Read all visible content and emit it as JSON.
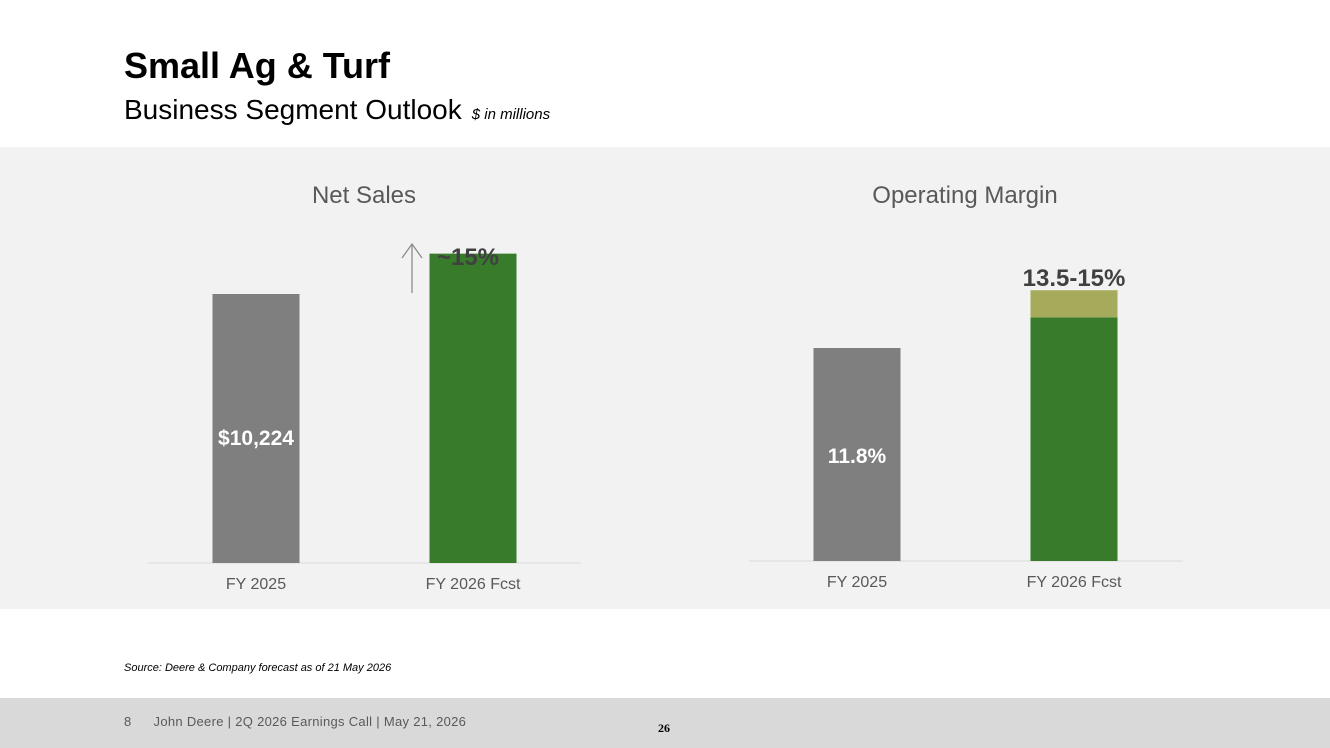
{
  "slide": {
    "title": "Small Ag & Turf",
    "subtitle": "Business Segment Outlook",
    "units_note": "$ in millions"
  },
  "chart_data": [
    {
      "type": "bar",
      "title": "Net Sales",
      "categories": [
        "FY 2025",
        "FY 2026 Fcst"
      ],
      "values": [
        10224,
        11758
      ],
      "data_labels": [
        "$10,224",
        "~15%"
      ],
      "annotation": "upward arrow indicating ~15% increase",
      "colors": [
        "#7f7f7f",
        "#377b2b"
      ],
      "grid": false,
      "legend": "none"
    },
    {
      "type": "bar",
      "title": "Operating Margin",
      "categories": [
        "FY 2025",
        "FY 2026 Fcst"
      ],
      "values": [
        11.8,
        13.5
      ],
      "range_high": [
        null,
        15.0
      ],
      "data_labels": [
        "11.8%",
        "13.5-15%"
      ],
      "colors": [
        "#7f7f7f",
        "#377b2b"
      ],
      "range_color": "#a5ab5a",
      "grid": false,
      "legend": "none"
    }
  ],
  "footer": {
    "source": "Source: Deere & Company forecast as of 21 May 2026",
    "slide_number": "8",
    "text": "John Deere | 2Q 2026 Earnings Call | May 21, 2026",
    "page": "26"
  }
}
